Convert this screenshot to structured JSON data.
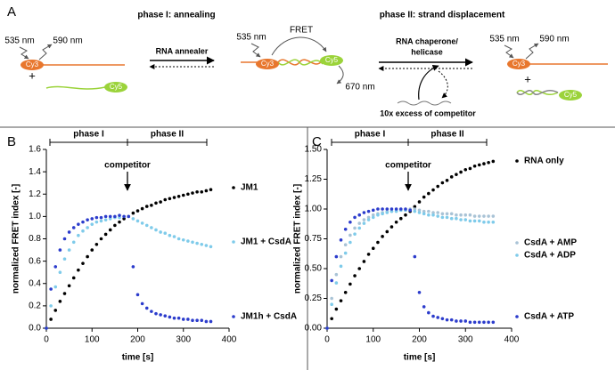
{
  "panel_a": {
    "label": "A",
    "phase1_title": "phase I: annealing",
    "phase2_title": "phase II: strand displacement",
    "left": {
      "excitation": "535 nm",
      "emission": "590 nm",
      "donor": "Cy3",
      "acceptor": "Cy5",
      "plus": "+"
    },
    "annealer": "RNA annealer",
    "middle": {
      "excitation": "535 nm",
      "fret": "FRET",
      "emission": "670 nm",
      "donor": "Cy3",
      "acceptor": "Cy5"
    },
    "chaperone": [
      "RNA chaperone/",
      "helicase"
    ],
    "competitor": "10x excess of competitor",
    "right": {
      "excitation": "535 nm",
      "emission": "590 nm",
      "donor": "Cy3",
      "acceptor": "Cy5",
      "plus": "+"
    }
  },
  "chart_data": [
    {
      "type": "scatter",
      "panel": "B",
      "xlabel": "time [s]",
      "ylabel": "normalized FRET index [-]",
      "phase1": "phase I",
      "phase2": "phase II",
      "annotation": "competitor",
      "xlim": [
        0,
        400
      ],
      "xticks": [
        0,
        100,
        200,
        300,
        400
      ],
      "ylim": [
        0,
        1.6
      ],
      "yticks": [
        {
          "value": 0,
          "label": "0.0"
        },
        {
          "value": 0.2,
          "label": "0.2"
        },
        {
          "value": 0.4,
          "label": "0.4"
        },
        {
          "value": 0.6,
          "label": "0.6"
        },
        {
          "value": 0.8,
          "label": "0.8"
        },
        {
          "value": 1.0,
          "label": "1.0"
        },
        {
          "value": 1.2,
          "label": "1.2"
        },
        {
          "value": 1.4,
          "label": "1.4"
        },
        {
          "value": 1.6,
          "label": "1.6"
        }
      ],
      "x": [
        0,
        10,
        20,
        30,
        40,
        50,
        60,
        70,
        80,
        90,
        100,
        110,
        120,
        130,
        140,
        150,
        160,
        170,
        180,
        190,
        200,
        210,
        220,
        230,
        240,
        250,
        260,
        270,
        280,
        290,
        300,
        310,
        320,
        330,
        340,
        350,
        360
      ],
      "series": [
        {
          "name": "JM1",
          "color": "#000000",
          "values": [
            0,
            0.08,
            0.16,
            0.24,
            0.31,
            0.38,
            0.45,
            0.52,
            0.58,
            0.64,
            0.7,
            0.75,
            0.8,
            0.84,
            0.88,
            0.92,
            0.95,
            0.98,
            1.0,
            1.03,
            1.05,
            1.07,
            1.09,
            1.1,
            1.12,
            1.13,
            1.15,
            1.16,
            1.17,
            1.18,
            1.19,
            1.2,
            1.21,
            1.22,
            1.22,
            1.23,
            1.24
          ]
        },
        {
          "name": "JM1 + CsdA",
          "color": "#7fcbea",
          "values": [
            0,
            0.2,
            0.37,
            0.5,
            0.62,
            0.7,
            0.77,
            0.83,
            0.87,
            0.9,
            0.93,
            0.95,
            0.96,
            0.97,
            0.98,
            0.99,
            0.99,
            1.0,
            1.0,
            0.98,
            0.96,
            0.94,
            0.92,
            0.9,
            0.88,
            0.86,
            0.85,
            0.83,
            0.82,
            0.8,
            0.79,
            0.78,
            0.77,
            0.76,
            0.75,
            0.74,
            0.73
          ]
        },
        {
          "name": "JM1h + CsdA",
          "color": "#2c3ccc",
          "values": [
            0,
            0.35,
            0.55,
            0.7,
            0.8,
            0.86,
            0.9,
            0.93,
            0.95,
            0.97,
            0.98,
            0.99,
            0.99,
            1.0,
            1.0,
            1.0,
            1.01,
            1.0,
            1.0,
            0.55,
            0.3,
            0.22,
            0.18,
            0.15,
            0.13,
            0.12,
            0.11,
            0.1,
            0.09,
            0.09,
            0.08,
            0.08,
            0.07,
            0.07,
            0.07,
            0.06,
            0.06
          ]
        }
      ]
    },
    {
      "type": "scatter",
      "panel": "C",
      "xlabel": "time [s]",
      "ylabel": "normalized FRET index [-]",
      "phase1": "phase I",
      "phase2": "phase II",
      "annotation": "competitor",
      "xlim": [
        0,
        400
      ],
      "xticks": [
        0,
        100,
        200,
        300,
        400
      ],
      "ylim": [
        0,
        1.5
      ],
      "yticks": [
        {
          "value": 0,
          "label": "0.00"
        },
        {
          "value": 0.25,
          "label": "0.25"
        },
        {
          "value": 0.5,
          "label": "0.50"
        },
        {
          "value": 0.75,
          "label": "0.75"
        },
        {
          "value": 1.0,
          "label": "1.00"
        },
        {
          "value": 1.25,
          "label": "1.25"
        },
        {
          "value": 1.5,
          "label": "1.50"
        }
      ],
      "x": [
        0,
        10,
        20,
        30,
        40,
        50,
        60,
        70,
        80,
        90,
        100,
        110,
        120,
        130,
        140,
        150,
        160,
        170,
        180,
        190,
        200,
        210,
        220,
        230,
        240,
        250,
        260,
        270,
        280,
        290,
        300,
        310,
        320,
        330,
        340,
        350,
        360
      ],
      "series": [
        {
          "name": "RNA only",
          "color": "#000000",
          "values": [
            0,
            0.08,
            0.16,
            0.23,
            0.3,
            0.37,
            0.44,
            0.5,
            0.56,
            0.62,
            0.67,
            0.72,
            0.77,
            0.81,
            0.85,
            0.89,
            0.92,
            0.95,
            0.98,
            1.02,
            1.06,
            1.1,
            1.13,
            1.16,
            1.19,
            1.22,
            1.24,
            1.27,
            1.29,
            1.31,
            1.33,
            1.34,
            1.36,
            1.37,
            1.38,
            1.39,
            1.4
          ]
        },
        {
          "name": "CsdA + AMP",
          "color": "#a9c3d6",
          "values": [
            0,
            0.25,
            0.45,
            0.6,
            0.7,
            0.78,
            0.84,
            0.88,
            0.91,
            0.93,
            0.95,
            0.96,
            0.97,
            0.98,
            0.98,
            0.99,
            0.99,
            0.99,
            1.0,
            1.0,
            0.99,
            0.98,
            0.98,
            0.97,
            0.97,
            0.96,
            0.96,
            0.96,
            0.95,
            0.95,
            0.95,
            0.95,
            0.94,
            0.94,
            0.94,
            0.94,
            0.94
          ]
        },
        {
          "name": "CsdA + ADP",
          "color": "#7fcbea",
          "values": [
            0,
            0.2,
            0.38,
            0.52,
            0.63,
            0.72,
            0.79,
            0.84,
            0.88,
            0.91,
            0.93,
            0.95,
            0.96,
            0.97,
            0.98,
            0.98,
            0.99,
            0.99,
            0.99,
            0.98,
            0.97,
            0.96,
            0.95,
            0.95,
            0.94,
            0.93,
            0.93,
            0.92,
            0.92,
            0.91,
            0.91,
            0.9,
            0.9,
            0.9,
            0.89,
            0.89,
            0.89
          ]
        },
        {
          "name": "CsdA + ATP",
          "color": "#2c3ccc",
          "values": [
            0,
            0.4,
            0.6,
            0.74,
            0.83,
            0.89,
            0.93,
            0.95,
            0.97,
            0.98,
            0.99,
            1.0,
            1.0,
            1.0,
            1.0,
            1.0,
            1.0,
            1.0,
            0.99,
            0.6,
            0.3,
            0.18,
            0.13,
            0.1,
            0.09,
            0.08,
            0.07,
            0.07,
            0.06,
            0.06,
            0.06,
            0.05,
            0.05,
            0.05,
            0.05,
            0.05,
            0.05
          ]
        }
      ]
    }
  ]
}
